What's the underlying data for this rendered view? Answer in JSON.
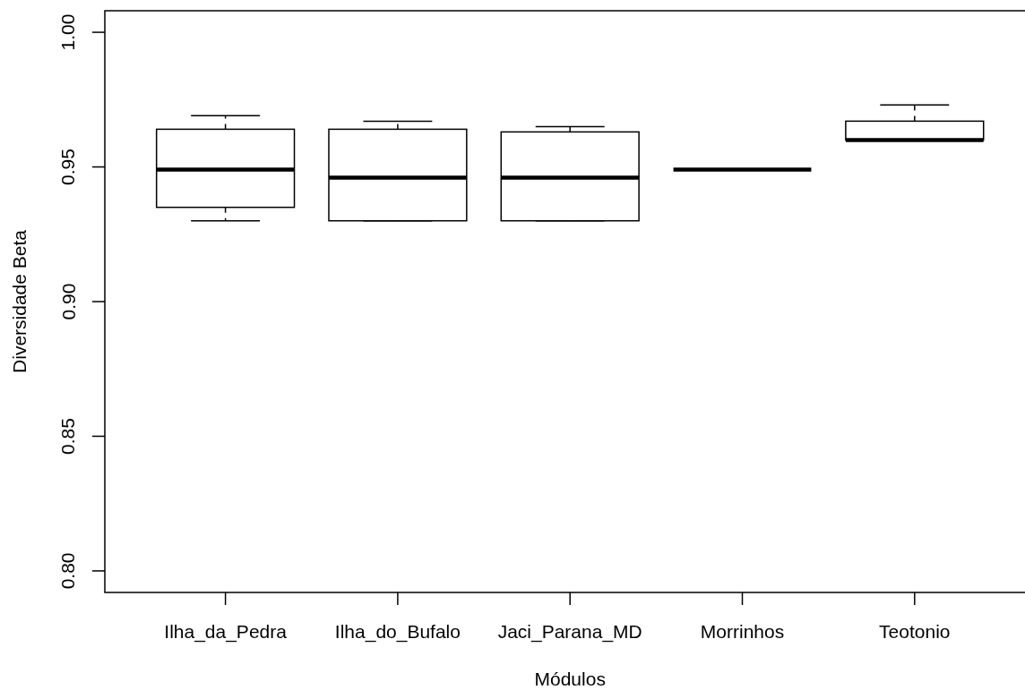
{
  "chart_data": {
    "type": "box",
    "xlabel": "Módulos",
    "ylabel": "Diversidade Beta",
    "categories": [
      "Ilha_da_Pedra",
      "Ilha_do_Bufalo",
      "Jaci_Parana_MD",
      "Morrinhos",
      "Teotonio"
    ],
    "boxes": [
      {
        "low": 0.93,
        "q1": 0.935,
        "median": 0.949,
        "q3": 0.964,
        "high": 0.969
      },
      {
        "low": 0.93,
        "q1": 0.93,
        "median": 0.946,
        "q3": 0.964,
        "high": 0.967
      },
      {
        "low": 0.93,
        "q1": 0.93,
        "median": 0.946,
        "q3": 0.963,
        "high": 0.965
      },
      {
        "low": 0.949,
        "q1": 0.949,
        "median": 0.949,
        "q3": 0.949,
        "high": 0.949
      },
      {
        "low": 0.96,
        "q1": 0.96,
        "median": 0.96,
        "q3": 0.967,
        "high": 0.973
      }
    ],
    "ylim": [
      0.792,
      1.008
    ],
    "yticks": [
      {
        "value": 0.8,
        "label": "0.80"
      },
      0.85,
      {
        "value": 0.9,
        "label": "0.90"
      },
      0.95,
      {
        "value": 1.0,
        "label": "1.00"
      }
    ]
  }
}
